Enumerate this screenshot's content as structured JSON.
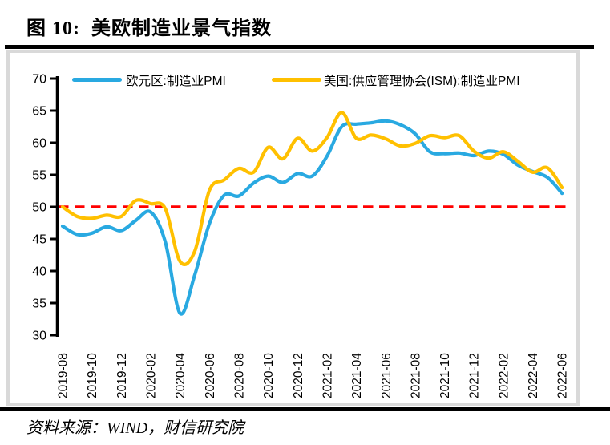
{
  "page": {
    "title": "图 10:  美欧制造业景气指数",
    "source": "资料来源：WIND，财信研究院"
  },
  "chart_data": {
    "type": "line",
    "title": "美欧制造业景气指数",
    "x": [
      "2019-08",
      "2019-09",
      "2019-10",
      "2019-11",
      "2019-12",
      "2020-01",
      "2020-02",
      "2020-03",
      "2020-04",
      "2020-05",
      "2020-06",
      "2020-07",
      "2020-08",
      "2020-09",
      "2020-10",
      "2020-11",
      "2020-12",
      "2021-01",
      "2021-02",
      "2021-03",
      "2021-04",
      "2021-05",
      "2021-06",
      "2021-07",
      "2021-08",
      "2021-09",
      "2021-10",
      "2021-11",
      "2021-12",
      "2022-01",
      "2022-02",
      "2022-03",
      "2022-04",
      "2022-05",
      "2022-06"
    ],
    "x_tick_labels": [
      "2019-08",
      "2019-10",
      "2019-12",
      "2020-02",
      "2020-04",
      "2020-06",
      "2020-08",
      "2020-10",
      "2020-12",
      "2021-02",
      "2021-04",
      "2021-06",
      "2021-08",
      "2021-10",
      "2021-12",
      "2022-02",
      "2022-04",
      "2022-06"
    ],
    "ylim": [
      30,
      70
    ],
    "yticks": [
      70,
      65,
      60,
      55,
      50,
      45,
      40,
      35,
      30
    ],
    "grid": false,
    "legend_position": "top",
    "reference_line": {
      "value": 50,
      "color": "#FF0000",
      "style": "dashed"
    },
    "series": [
      {
        "name": "欧元区:制造业PMI",
        "color": "#29A9E1",
        "values": [
          47.0,
          45.7,
          45.9,
          46.9,
          46.3,
          47.9,
          49.2,
          44.5,
          33.4,
          39.4,
          47.4,
          51.8,
          51.7,
          53.7,
          54.8,
          53.8,
          55.2,
          54.8,
          57.9,
          62.5,
          62.9,
          63.1,
          63.4,
          62.8,
          61.4,
          58.6,
          58.3,
          58.4,
          58.0,
          58.7,
          58.2,
          56.5,
          55.5,
          54.6,
          52.1
        ]
      },
      {
        "name": "美国:供应管理协会(ISM):制造业PMI",
        "color": "#FFC000",
        "values": [
          50.0,
          48.5,
          48.2,
          48.7,
          48.5,
          51.0,
          50.5,
          49.7,
          41.5,
          43.1,
          52.6,
          54.2,
          56.0,
          55.4,
          59.3,
          57.5,
          60.7,
          58.7,
          60.8,
          64.7,
          60.7,
          61.2,
          60.6,
          59.5,
          59.9,
          61.1,
          60.8,
          61.1,
          58.7,
          57.6,
          58.6,
          57.1,
          55.4,
          56.1,
          53.0
        ]
      }
    ]
  }
}
